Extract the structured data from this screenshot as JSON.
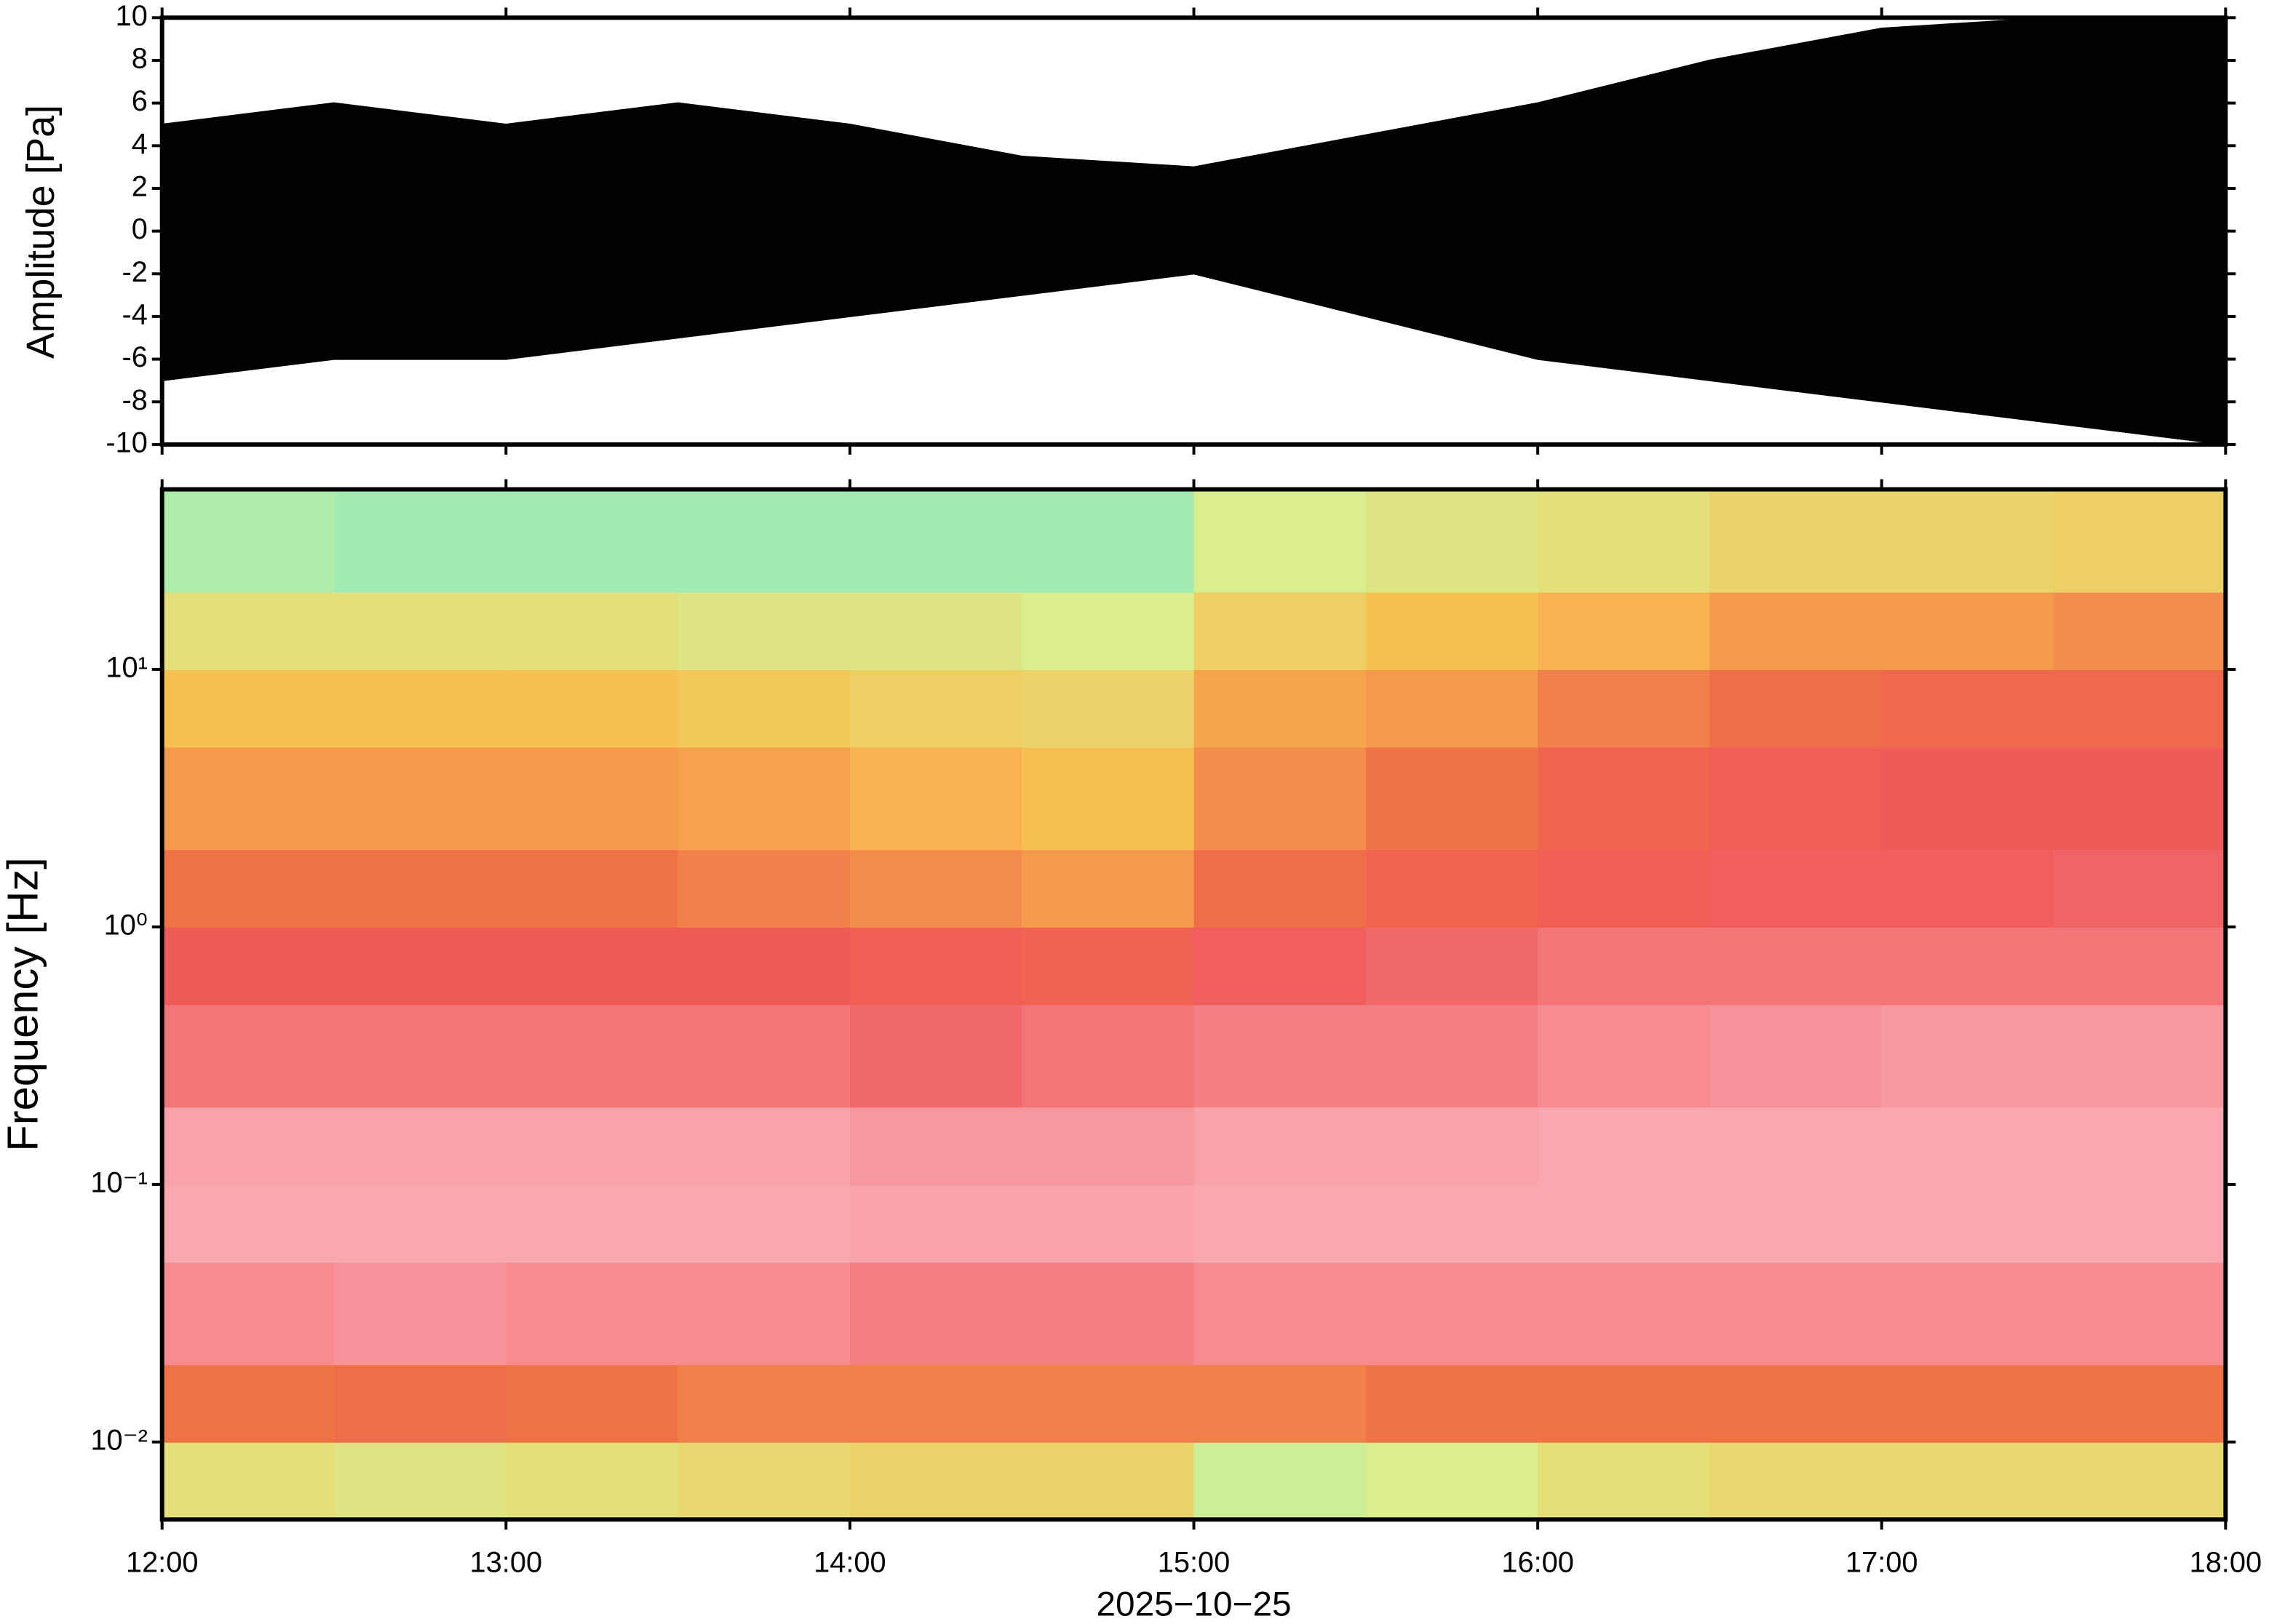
{
  "chart_data": [
    {
      "type": "area",
      "ylabel": "Amplitude [Pa]",
      "color": "#000000",
      "x": [
        12,
        12.5,
        13,
        13.5,
        14,
        14.5,
        15,
        15.5,
        16,
        16.5,
        17,
        17.5,
        18
      ],
      "envelope_upper": [
        5,
        6,
        5,
        6,
        5,
        3.5,
        3,
        4.5,
        6,
        8,
        9.5,
        10,
        10
      ],
      "envelope_lower": [
        -7,
        -6,
        -6,
        -5,
        -4,
        -3,
        -2,
        -4,
        -6,
        -7,
        -8,
        -9,
        -10
      ],
      "xlim": [
        12,
        18
      ],
      "ylim": [
        -10,
        10
      ],
      "xticks": [
        12,
        13,
        14,
        15,
        16,
        17,
        18
      ],
      "yticks": [
        -10,
        -8,
        -6,
        -4,
        -2,
        0,
        2,
        4,
        6,
        8,
        10
      ]
    },
    {
      "type": "heatmap",
      "ylabel": "Frequency [Hz]",
      "xlabel": "2025−10−25",
      "log_y": true,
      "x": [
        12,
        12.5,
        13,
        13.5,
        14,
        14.5,
        15,
        15.5,
        16,
        16.5,
        17,
        17.5,
        18
      ],
      "y": [
        0.005,
        0.01,
        0.02,
        0.05,
        0.1,
        0.2,
        0.5,
        1,
        2,
        5,
        10,
        20,
        50
      ],
      "z": [
        [
          0.42,
          0.62,
          0.84,
          0.9,
          0.88,
          0.8,
          0.74,
          0.62,
          0.56,
          0.5,
          0.42,
          0.32
        ],
        [
          0.4,
          0.64,
          0.85,
          0.9,
          0.88,
          0.8,
          0.74,
          0.62,
          0.56,
          0.5,
          0.42,
          0.3
        ],
        [
          0.42,
          0.62,
          0.84,
          0.9,
          0.88,
          0.8,
          0.74,
          0.62,
          0.56,
          0.5,
          0.42,
          0.3
        ],
        [
          0.44,
          0.6,
          0.84,
          0.9,
          0.88,
          0.8,
          0.74,
          0.6,
          0.55,
          0.48,
          0.4,
          0.3
        ],
        [
          0.45,
          0.6,
          0.82,
          0.88,
          0.86,
          0.78,
          0.72,
          0.58,
          0.52,
          0.46,
          0.4,
          0.3
        ],
        [
          0.45,
          0.6,
          0.82,
          0.88,
          0.86,
          0.8,
          0.7,
          0.56,
          0.5,
          0.45,
          0.38,
          0.3
        ],
        [
          0.36,
          0.6,
          0.84,
          0.9,
          0.88,
          0.82,
          0.76,
          0.64,
          0.58,
          0.54,
          0.46,
          0.38
        ],
        [
          0.38,
          0.62,
          0.84,
          0.9,
          0.88,
          0.82,
          0.78,
          0.68,
          0.62,
          0.56,
          0.5,
          0.4
        ],
        [
          0.42,
          0.62,
          0.84,
          0.9,
          0.9,
          0.84,
          0.8,
          0.72,
          0.68,
          0.6,
          0.52,
          0.42
        ],
        [
          0.44,
          0.62,
          0.84,
          0.9,
          0.9,
          0.85,
          0.8,
          0.76,
          0.72,
          0.64,
          0.56,
          0.45
        ],
        [
          0.44,
          0.62,
          0.84,
          0.9,
          0.9,
          0.86,
          0.8,
          0.76,
          0.74,
          0.66,
          0.56,
          0.45
        ],
        [
          0.44,
          0.62,
          0.84,
          0.9,
          0.9,
          0.86,
          0.8,
          0.77,
          0.74,
          0.66,
          0.58,
          0.46
        ]
      ],
      "colormap": [
        "#1c2ca8",
        "#4fc8e8",
        "#7ee8c8",
        "#d8f090",
        "#f8c050",
        "#f07048",
        "#f05858",
        "#f8a0a8",
        "#f8c8c8"
      ],
      "xlim": [
        12,
        18
      ],
      "ylim": [
        0.005,
        50
      ],
      "xticks": [
        {
          "value": 12,
          "label": "12:00"
        },
        {
          "value": 13,
          "label": "13:00"
        },
        {
          "value": 14,
          "label": "14:00"
        },
        {
          "value": 15,
          "label": "15:00"
        },
        {
          "value": 16,
          "label": "16:00"
        },
        {
          "value": 17,
          "label": "17:00"
        },
        {
          "value": 18,
          "label": "18:00"
        }
      ],
      "yticks": [
        {
          "value": 0.01,
          "label": "10⁻²"
        },
        {
          "value": 0.1,
          "label": "10⁻¹"
        },
        {
          "value": 1,
          "label": "10⁰"
        },
        {
          "value": 10,
          "label": "10¹"
        }
      ]
    }
  ]
}
